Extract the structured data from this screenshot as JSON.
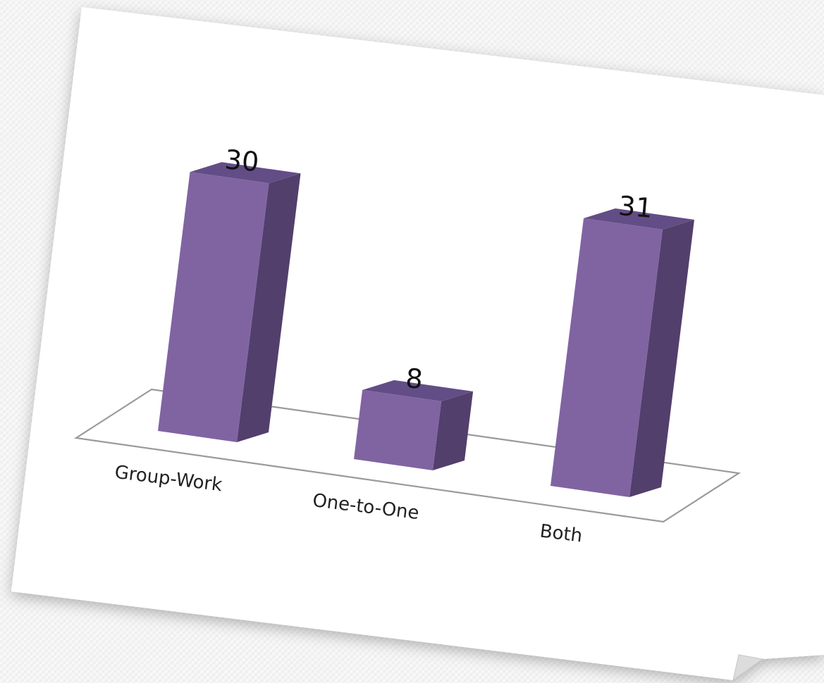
{
  "chart_data": {
    "type": "bar",
    "categories": [
      "Group-Work",
      "One-to-One",
      "Both"
    ],
    "values": [
      30,
      8,
      31
    ],
    "title": "",
    "xlabel": "",
    "ylabel": "",
    "ylim": [
      0,
      31
    ],
    "grid": false,
    "legend": "none",
    "style": "3d-column",
    "colors": {
      "bar_front": "#8064A2",
      "bar_top": "#634D86",
      "bar_side": "#523F6C",
      "floor_stroke": "#9a9a9a",
      "paper": "#ffffff"
    }
  }
}
